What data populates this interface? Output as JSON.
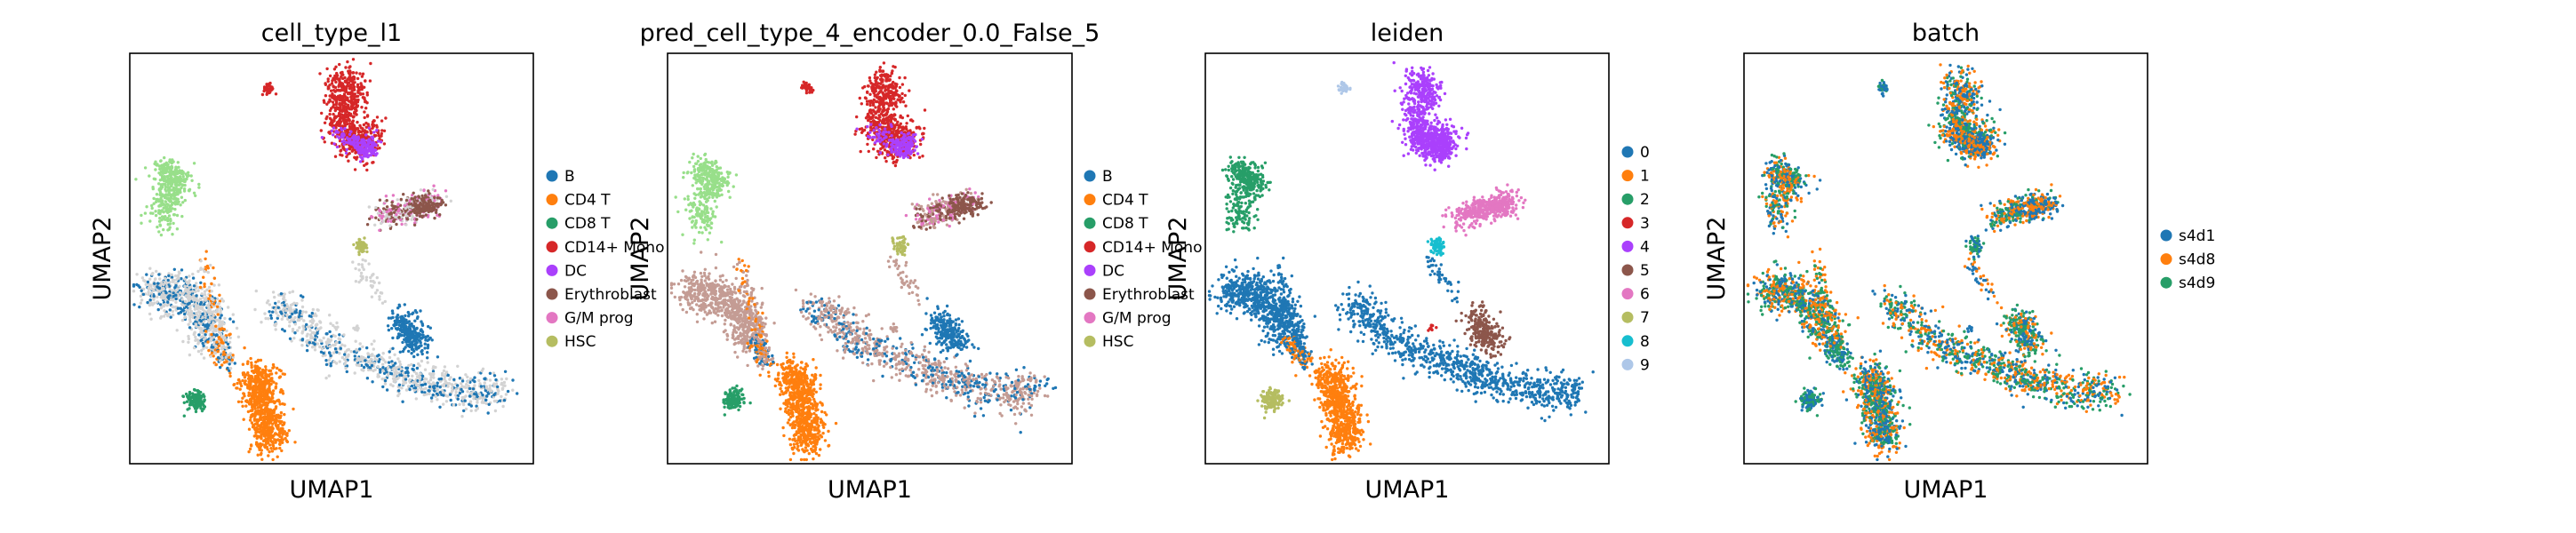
{
  "figure": {
    "panels": [
      {
        "title": "cell_type_l1",
        "xlabel": "UMAP1",
        "ylabel": "UMAP2",
        "legend": [
          {
            "label": "B",
            "color": "#1f77b4"
          },
          {
            "label": "CD4 T",
            "color": "#ff7f0e"
          },
          {
            "label": "CD8 T",
            "color": "#279e68"
          },
          {
            "label": "CD14+ Mono",
            "color": "#d62728"
          },
          {
            "label": "DC",
            "color": "#aa40fc"
          },
          {
            "label": "Erythroblast",
            "color": "#8c564b"
          },
          {
            "label": "G/M prog",
            "color": "#e377c2"
          },
          {
            "label": "HSC",
            "color": "#b5bd61"
          }
        ],
        "unlabeled_color": "#d3d3d3"
      },
      {
        "title": "pred_cell_type_4_encoder_0.0_False_5",
        "xlabel": "UMAP1",
        "ylabel": "UMAP2",
        "legend": [
          {
            "label": "B",
            "color": "#1f77b4"
          },
          {
            "label": "CD4 T",
            "color": "#ff7f0e"
          },
          {
            "label": "CD8 T",
            "color": "#279e68"
          },
          {
            "label": "CD14+ Mono",
            "color": "#d62728"
          },
          {
            "label": "DC",
            "color": "#aa40fc"
          },
          {
            "label": "Erythroblast",
            "color": "#8c564b"
          },
          {
            "label": "G/M prog",
            "color": "#e377c2"
          },
          {
            "label": "HSC",
            "color": "#b5bd61"
          }
        ],
        "unlabeled_color": "#c49c94"
      },
      {
        "title": "leiden",
        "xlabel": "UMAP1",
        "ylabel": "UMAP2",
        "legend": [
          {
            "label": "0",
            "color": "#1f77b4"
          },
          {
            "label": "1",
            "color": "#ff7f0e"
          },
          {
            "label": "2",
            "color": "#279e68"
          },
          {
            "label": "3",
            "color": "#d62728"
          },
          {
            "label": "4",
            "color": "#aa40fc"
          },
          {
            "label": "5",
            "color": "#8c564b"
          },
          {
            "label": "6",
            "color": "#e377c2"
          },
          {
            "label": "7",
            "color": "#b5bd61"
          },
          {
            "label": "8",
            "color": "#17becf"
          },
          {
            "label": "9",
            "color": "#aec7e8"
          }
        ]
      },
      {
        "title": "batch",
        "xlabel": "UMAP1",
        "ylabel": "UMAP2",
        "legend": [
          {
            "label": "s4d1",
            "color": "#1f77b4"
          },
          {
            "label": "s4d8",
            "color": "#ff7f0e"
          },
          {
            "label": "s4d9",
            "color": "#279e68"
          }
        ]
      }
    ]
  },
  "chart_data": [
    {
      "type": "scatter",
      "title": "cell_type_l1",
      "xlabel": "UMAP1",
      "ylabel": "UMAP2",
      "series": [
        {
          "name": "B"
        },
        {
          "name": "CD4 T"
        },
        {
          "name": "CD8 T"
        },
        {
          "name": "CD14+ Mono"
        },
        {
          "name": "DC"
        },
        {
          "name": "Erythroblast"
        },
        {
          "name": "G/M prog"
        },
        {
          "name": "HSC"
        }
      ],
      "grid": false,
      "legend_position": "right"
    },
    {
      "type": "scatter",
      "title": "pred_cell_type_4_encoder_0.0_False_5",
      "xlabel": "UMAP1",
      "ylabel": "UMAP2",
      "series": [
        {
          "name": "B"
        },
        {
          "name": "CD4 T"
        },
        {
          "name": "CD8 T"
        },
        {
          "name": "CD14+ Mono"
        },
        {
          "name": "DC"
        },
        {
          "name": "Erythroblast"
        },
        {
          "name": "G/M prog"
        },
        {
          "name": "HSC"
        }
      ],
      "grid": false,
      "legend_position": "right"
    },
    {
      "type": "scatter",
      "title": "leiden",
      "xlabel": "UMAP1",
      "ylabel": "UMAP2",
      "series": [
        {
          "name": "0"
        },
        {
          "name": "1"
        },
        {
          "name": "2"
        },
        {
          "name": "3"
        },
        {
          "name": "4"
        },
        {
          "name": "5"
        },
        {
          "name": "6"
        },
        {
          "name": "7"
        },
        {
          "name": "8"
        },
        {
          "name": "9"
        }
      ],
      "grid": false,
      "legend_position": "right"
    },
    {
      "type": "scatter",
      "title": "batch",
      "xlabel": "UMAP1",
      "ylabel": "UMAP2",
      "series": [
        {
          "name": "s4d1"
        },
        {
          "name": "s4d8"
        },
        {
          "name": "s4d9"
        }
      ],
      "grid": false,
      "legend_position": "right"
    }
  ]
}
